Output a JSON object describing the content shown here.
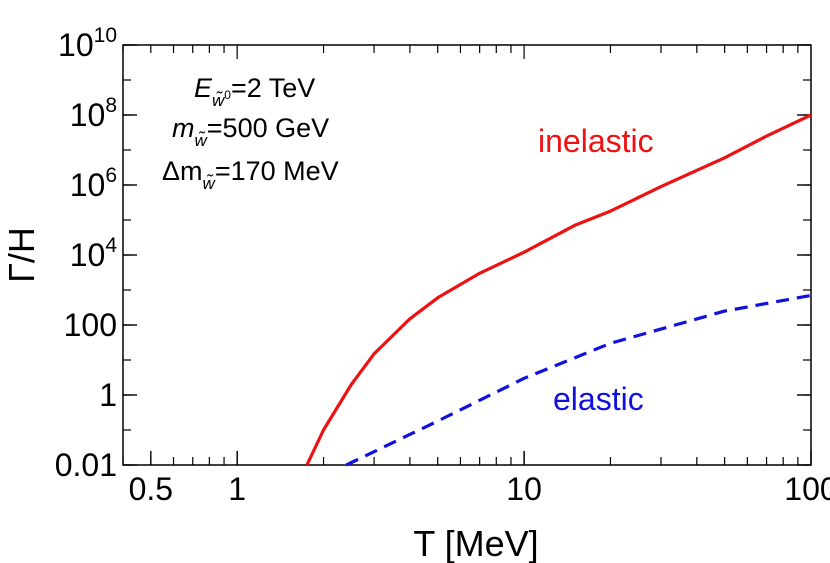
{
  "chart_data": {
    "type": "line",
    "title": "",
    "xlabel": "T [MeV]",
    "ylabel": "Γ/H",
    "xscale": "log",
    "yscale": "log",
    "xlim": [
      0.4,
      100
    ],
    "ylim": [
      0.01,
      10000000000.0
    ],
    "grid": false,
    "x_ticks": [
      {
        "value": 0.5,
        "label": "0.5"
      },
      {
        "value": 1,
        "label": "1"
      },
      {
        "value": 10,
        "label": "10"
      },
      {
        "value": 100,
        "label": "100"
      }
    ],
    "y_ticks": [
      {
        "value": 0.01,
        "label": "0.01",
        "base": "",
        "exp": ""
      },
      {
        "value": 1,
        "label": "1",
        "base": "",
        "exp": ""
      },
      {
        "value": 100,
        "label": "100",
        "base": "",
        "exp": ""
      },
      {
        "value": 10000,
        "label": "",
        "base": "10",
        "exp": "4"
      },
      {
        "value": 1000000,
        "label": "",
        "base": "10",
        "exp": "6"
      },
      {
        "value": 100000000,
        "label": "",
        "base": "10",
        "exp": "8"
      },
      {
        "value": 10000000000,
        "label": "",
        "base": "10",
        "exp": "10"
      }
    ],
    "annotations": {
      "energy": {
        "main": "E",
        "sub": "w̃",
        "subsup": "0",
        "rest": "=2 TeV"
      },
      "mass": {
        "main": "m",
        "sub": "w̃",
        "rest": "=500 GeV"
      },
      "splitting": {
        "main": "Δm",
        "sub": "w̃",
        "rest": "=170 MeV"
      }
    },
    "series": [
      {
        "name": "inelastic",
        "color": "#ee1111",
        "style": "solid",
        "x": [
          1.75,
          2,
          2.5,
          3,
          4,
          5,
          7,
          10,
          15,
          20,
          30,
          50,
          70,
          100
        ],
        "y": [
          0.01,
          0.1,
          2,
          15,
          150,
          600,
          3000,
          12000,
          70000,
          180000,
          900000,
          6000000,
          25000000,
          100000000
        ]
      },
      {
        "name": "elastic",
        "color": "#1111dd",
        "style": "dashed",
        "x": [
          2.4,
          5,
          10,
          20,
          50,
          100
        ],
        "y": [
          0.01,
          0.18,
          3.0,
          30,
          250,
          700
        ]
      }
    ]
  }
}
